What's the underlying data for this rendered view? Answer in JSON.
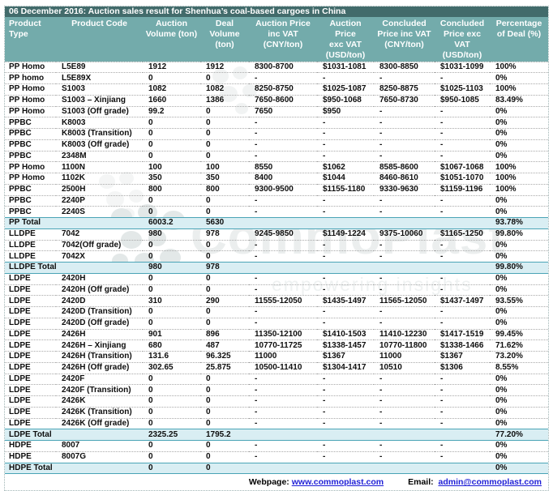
{
  "title": "06 December 2016: Auction sales result for Shenhua’s coal-based cargoes in China",
  "table": {
    "columns": [
      "Product\nType",
      "Product Code",
      "Auction\nVolume (ton)",
      "Deal\nVolume\n(ton)",
      "Auction Price\ninc VAT\n(CNY/ton)",
      "Auction\nPrice\nexc VAT\n(USD/ton)",
      "Concluded\nPrice inc VAT\n(CNY/ton)",
      "Concluded\nPrice exc VAT\n(USD/ton)",
      "Percentage\nof Deal (%)"
    ],
    "rows": [
      {
        "total": false,
        "cells": [
          "PP Homo",
          "L5E89",
          "1912",
          "1912",
          "8300-8700",
          "$1031-1081",
          "8300-8850",
          "$1031-1099",
          "100%"
        ]
      },
      {
        "total": false,
        "cells": [
          "PP homo",
          "L5E89X",
          "0",
          "0",
          "-",
          "-",
          "-",
          "-",
          "0%"
        ]
      },
      {
        "total": false,
        "cells": [
          "PP Homo",
          "S1003",
          "1082",
          "1082",
          "8250-8750",
          "$1025-1087",
          "8250-8875",
          "$1025-1103",
          "100%"
        ]
      },
      {
        "total": false,
        "cells": [
          "PP Homo",
          "S1003 – Xinjiang",
          "1660",
          "1386",
          "7650-8600",
          "$950-1068",
          "7650-8730",
          "$950-1085",
          "83.49%"
        ]
      },
      {
        "total": false,
        "cells": [
          "PP Homo",
          "S1003 (Off grade)",
          "99.2",
          "0",
          "7650",
          "$950",
          "-",
          "-",
          "0%"
        ]
      },
      {
        "total": false,
        "cells": [
          "PPBC",
          "K8003",
          "0",
          "0",
          "-",
          "-",
          "-",
          "-",
          "0%"
        ]
      },
      {
        "total": false,
        "cells": [
          "PPBC",
          "K8003 (Transition)",
          "0",
          "0",
          "-",
          "-",
          "-",
          "-",
          "0%"
        ]
      },
      {
        "total": false,
        "cells": [
          "PPBC",
          "K8003 (Off grade)",
          "0",
          "0",
          "-",
          "-",
          "-",
          "-",
          "0%"
        ]
      },
      {
        "total": false,
        "cells": [
          "PPBC",
          "2348M",
          "0",
          "0",
          "-",
          "-",
          "-",
          "-",
          "0%"
        ]
      },
      {
        "total": false,
        "cells": [
          "PP Homo",
          "1100N",
          "100",
          "100",
          "8550",
          "$1062",
          "8585-8600",
          "$1067-1068",
          "100%"
        ]
      },
      {
        "total": false,
        "cells": [
          "PP Homo",
          "1102K",
          "350",
          "350",
          "8400",
          "$1044",
          "8460-8610",
          "$1051-1070",
          "100%"
        ]
      },
      {
        "total": false,
        "cells": [
          "PPBC",
          "2500H",
          "800",
          "800",
          "9300-9500",
          "$1155-1180",
          "9330-9630",
          "$1159-1196",
          "100%"
        ]
      },
      {
        "total": false,
        "cells": [
          "PPBC",
          "2240P",
          "0",
          "0",
          "-",
          "-",
          "-",
          "-",
          "0%"
        ]
      },
      {
        "total": false,
        "cells": [
          "PPBC",
          "2240S",
          "0",
          "0",
          "-",
          "-",
          "-",
          "-",
          "0%"
        ]
      },
      {
        "total": true,
        "cells": [
          "PP Total",
          "",
          "6003.2",
          "5630",
          "",
          "",
          "",
          "",
          "93.78%"
        ]
      },
      {
        "total": false,
        "cells": [
          "LLDPE",
          "7042",
          "980",
          "978",
          "9245-9850",
          "$1149-1224",
          "9375-10060",
          "$1165-1250",
          "99.80%"
        ]
      },
      {
        "total": false,
        "cells": [
          "LLDPE",
          "7042(Off grade)",
          "0",
          "0",
          "-",
          "-",
          "-",
          "-",
          "0%"
        ]
      },
      {
        "total": false,
        "cells": [
          "LLDPE",
          "7042X",
          "0",
          "0",
          "-",
          "-",
          "-",
          "-",
          "0%"
        ]
      },
      {
        "total": true,
        "cells": [
          "LLDPE Total",
          "",
          "980",
          "978",
          "",
          "",
          "",
          "",
          "99.80%"
        ]
      },
      {
        "total": false,
        "cells": [
          "LDPE",
          "2420H",
          "0",
          "0",
          "-",
          "-",
          "-",
          "-",
          "0%"
        ]
      },
      {
        "total": false,
        "cells": [
          "LDPE",
          "2420H (Off grade)",
          "0",
          "0",
          "-",
          "-",
          "-",
          "-",
          "0%"
        ]
      },
      {
        "total": false,
        "cells": [
          "LDPE",
          "2420D",
          "310",
          "290",
          "11555-12050",
          "$1435-1497",
          "11565-12050",
          "$1437-1497",
          "93.55%"
        ]
      },
      {
        "total": false,
        "cells": [
          "LDPE",
          "2420D (Transition)",
          "0",
          "0",
          "-",
          "-",
          "-",
          "-",
          "0%"
        ]
      },
      {
        "total": false,
        "cells": [
          "LDPE",
          "2420D (Off grade)",
          "0",
          "0",
          "-",
          "-",
          "-",
          "-",
          "0%"
        ]
      },
      {
        "total": false,
        "cells": [
          "LDPE",
          "2426H",
          "901",
          "896",
          "11350-12100",
          "$1410-1503",
          "11410-12230",
          "$1417-1519",
          "99.45%"
        ]
      },
      {
        "total": false,
        "cells": [
          "LDPE",
          "2426H – Xinjiang",
          "680",
          "487",
          "10770-11725",
          "$1338-1457",
          "10770-11800",
          "$1338-1466",
          "71.62%"
        ]
      },
      {
        "total": false,
        "cells": [
          "LDPE",
          "2426H (Transition)",
          "131.6",
          "96.325",
          "11000",
          "$1367",
          "11000",
          "$1367",
          "73.20%"
        ]
      },
      {
        "total": false,
        "cells": [
          "LDPE",
          "2426H (Off grade)",
          "302.65",
          "25.875",
          "10500-11410",
          "$1304-1417",
          "10510",
          "$1306",
          "8.55%"
        ]
      },
      {
        "total": false,
        "cells": [
          "LDPE",
          "2420F",
          "0",
          "0",
          "-",
          "-",
          "-",
          "-",
          "0%"
        ]
      },
      {
        "total": false,
        "cells": [
          "LDPE",
          "2420F (Transition)",
          "0",
          "0",
          "-",
          "-",
          "-",
          "-",
          "0%"
        ]
      },
      {
        "total": false,
        "cells": [
          "LDPE",
          "2426K",
          "0",
          "0",
          "-",
          "-",
          "-",
          "-",
          "0%"
        ]
      },
      {
        "total": false,
        "cells": [
          "LDPE",
          "2426K (Transition)",
          "0",
          "0",
          "-",
          "-",
          "-",
          "-",
          "0%"
        ]
      },
      {
        "total": false,
        "cells": [
          "LDPE",
          "2426K (Off grade)",
          "0",
          "0",
          "-",
          "-",
          "-",
          "-",
          "0%"
        ]
      },
      {
        "total": true,
        "cells": [
          "LDPE Total",
          "",
          "2325.25",
          "1795.2",
          "",
          "",
          "",
          "",
          "77.20%"
        ]
      },
      {
        "total": false,
        "cells": [
          "HDPE",
          "8007",
          "0",
          "0",
          "-",
          "-",
          "-",
          "-",
          "0%"
        ]
      },
      {
        "total": false,
        "cells": [
          "HDPE",
          "8007G",
          "0",
          "0",
          "-",
          "-",
          "-",
          "-",
          "0%"
        ]
      },
      {
        "total": true,
        "cells": [
          "HDPE Total",
          "",
          "0",
          "0",
          "",
          "",
          "",
          "",
          "0%"
        ]
      }
    ]
  },
  "footer": {
    "webpage_label": "Webpage:",
    "webpage_url": "www.commoplast.com",
    "email_label": "Email:",
    "email_value": "admin@commoplast.com"
  },
  "watermark": {
    "text": "CommoPlast",
    "tagline": "empowering insights"
  },
  "colors": {
    "title_bar_bg": "#426b6b",
    "header_bg": "#73abab",
    "total_row_bg": "#d9eef3",
    "total_row_border": "#4aa4b6",
    "row_separator": "#a9a9a9",
    "link_blue": "#1f1fd6",
    "header_text": "#ffffff",
    "body_text": "#0d0d0d"
  }
}
